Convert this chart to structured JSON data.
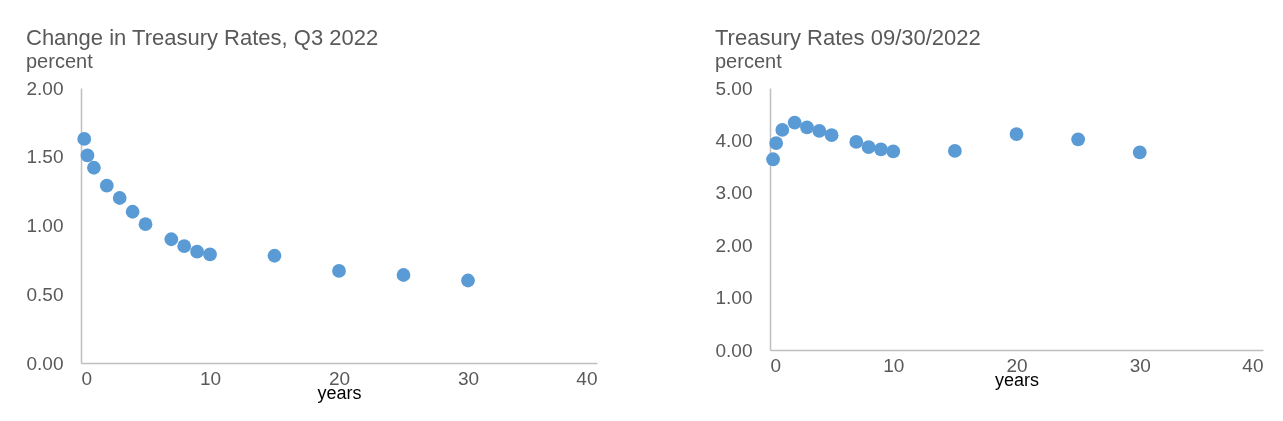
{
  "chart_data": [
    {
      "type": "scatter",
      "title": "Change in Treasury Rates, Q3 2022",
      "subtitle": "percent",
      "xlabel": "years",
      "x": [
        0.25,
        0.5,
        1,
        2,
        3,
        4,
        5,
        7,
        8,
        9,
        10,
        15,
        20,
        25,
        30
      ],
      "series": [
        {
          "color": "#5b9bd5",
          "values": [
            1.63,
            1.51,
            1.42,
            1.29,
            1.2,
            1.1,
            1.01,
            0.9,
            0.85,
            0.81,
            0.79,
            0.78,
            0.67,
            0.64,
            0.6
          ]
        }
      ],
      "xlim": [
        0,
        40
      ],
      "xticks": [
        0,
        10,
        20,
        30,
        40
      ],
      "ylim": [
        0,
        2
      ],
      "yticks": [
        {
          "value": 0,
          "label": "0.00"
        },
        {
          "value": 0.5,
          "label": "0.50"
        },
        {
          "value": 1,
          "label": "1.00"
        },
        {
          "value": 1.5,
          "label": "1.50"
        },
        {
          "value": 2,
          "label": "2.00"
        }
      ]
    },
    {
      "type": "scatter",
      "title": "Treasury Rates 09/30/2022",
      "subtitle": "percent",
      "xlabel": "years",
      "x": [
        0.25,
        0.5,
        1,
        2,
        3,
        4,
        5,
        7,
        8,
        9,
        10,
        15,
        20,
        25,
        30
      ],
      "series": [
        {
          "color": "#5b9bd5",
          "values": [
            3.64,
            3.95,
            4.2,
            4.34,
            4.25,
            4.18,
            4.1,
            3.97,
            3.87,
            3.83,
            3.79,
            3.8,
            4.12,
            4.02,
            3.77
          ]
        }
      ],
      "xlim": [
        0,
        40
      ],
      "xticks": [
        0,
        10,
        20,
        30,
        40
      ],
      "ylim": [
        0,
        5
      ],
      "yticks": [
        {
          "value": 0,
          "label": "0.00"
        },
        {
          "value": 1,
          "label": "1.00"
        },
        {
          "value": 2,
          "label": "2.00"
        },
        {
          "value": 3,
          "label": "3.00"
        },
        {
          "value": 4,
          "label": "4.00"
        },
        {
          "value": 5,
          "label": "5.00"
        }
      ]
    }
  ]
}
